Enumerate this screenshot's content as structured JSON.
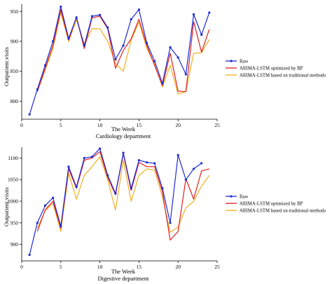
{
  "chart_data": [
    {
      "type": "line",
      "title": "",
      "xlabel": "The Week",
      "subtitle": "Cardiology department",
      "ylabel": "Outpatient.visits",
      "xlim": [
        0,
        25
      ],
      "ylim": [
        770,
        962
      ],
      "xticks": [
        0,
        5,
        10,
        15,
        20,
        25
      ],
      "yticks": [
        800,
        850,
        900,
        950
      ],
      "grid": false,
      "legend_position": "right",
      "series": [
        {
          "name": "Raw",
          "color": "#1f2bd6",
          "marker": "circle",
          "x": [
            1,
            2,
            3,
            4,
            5,
            6,
            7,
            8,
            9,
            10,
            11,
            12,
            13,
            14,
            15,
            16,
            17,
            18,
            19,
            20,
            21,
            22,
            23,
            24
          ],
          "values": [
            778,
            820,
            860,
            900,
            958,
            905,
            940,
            893,
            942,
            944,
            923,
            870,
            893,
            937,
            953,
            897,
            867,
            830,
            890,
            873,
            845,
            945,
            911,
            948
          ]
        },
        {
          "name": "ARIMA-LSTM optimized by BP",
          "color": "#e02020",
          "marker": "none",
          "x": [
            2,
            3,
            4,
            5,
            6,
            7,
            8,
            9,
            10,
            11,
            12,
            13,
            14,
            15,
            16,
            17,
            18,
            19,
            20,
            21,
            22,
            23,
            24
          ],
          "values": [
            816,
            855,
            893,
            953,
            902,
            941,
            888,
            939,
            942,
            921,
            855,
            885,
            904,
            937,
            893,
            860,
            826,
            880,
            817,
            816,
            933,
            882,
            920
          ]
        },
        {
          "name": "ARIMA-LSTM based on traditional methods",
          "color": "#f0b020",
          "marker": "none",
          "x": [
            2,
            3,
            4,
            5,
            6,
            7,
            8,
            9,
            10,
            11,
            12,
            13,
            14,
            15,
            16,
            17,
            18,
            19,
            20,
            21,
            22,
            23,
            24
          ],
          "values": [
            816,
            852,
            888,
            948,
            900,
            936,
            895,
            921,
            921,
            900,
            863,
            850,
            902,
            932,
            888,
            862,
            824,
            860,
            812,
            816,
            880,
            881,
            903
          ]
        }
      ]
    },
    {
      "type": "line",
      "title": "",
      "xlabel": "The Week",
      "subtitle": "Digestive department",
      "ylabel": "Outpatient.visits",
      "xlim": [
        0,
        25
      ],
      "ylim": [
        862,
        1125
      ],
      "xticks": [
        0,
        5,
        10,
        15,
        20,
        25
      ],
      "yticks": [
        900,
        950,
        1000,
        1050,
        1100
      ],
      "grid": false,
      "legend_position": "right",
      "series": [
        {
          "name": "Raw",
          "color": "#1f2bd6",
          "marker": "circle",
          "x": [
            1,
            2,
            3,
            4,
            5,
            6,
            7,
            8,
            9,
            10,
            11,
            12,
            13,
            14,
            15,
            16,
            17,
            18,
            19,
            20,
            21,
            22,
            23,
            24
          ],
          "values": [
            876,
            950,
            990,
            1008,
            942,
            1080,
            1033,
            1100,
            1103,
            1122,
            1060,
            1018,
            1112,
            1030,
            1095,
            1090,
            1088,
            1030,
            950,
            1107,
            1050,
            1075,
            1088,
            null
          ]
        },
        {
          "name": "ARIMA-LSTM optimized by BP",
          "color": "#e02020",
          "marker": "none",
          "x": [
            2,
            3,
            4,
            5,
            6,
            7,
            8,
            9,
            10,
            11,
            12,
            13,
            14,
            15,
            16,
            17,
            18,
            19,
            20,
            21,
            22,
            23,
            24
          ],
          "values": [
            930,
            980,
            1000,
            938,
            1075,
            1030,
            1095,
            1100,
            1115,
            1055,
            1015,
            1110,
            1025,
            1090,
            1080,
            1080,
            1022,
            910,
            930,
            1052,
            1005,
            1070,
            1075
          ]
        },
        {
          "name": "ARIMA-LSTM based on traditional methods",
          "color": "#f0b020",
          "marker": "none",
          "x": [
            2,
            3,
            4,
            5,
            6,
            7,
            8,
            9,
            10,
            11,
            12,
            13,
            14,
            15,
            16,
            17,
            18,
            19,
            20,
            21,
            22,
            23,
            24
          ],
          "values": [
            938,
            978,
            995,
            930,
            1065,
            1005,
            1060,
            1080,
            1103,
            1050,
            980,
            1095,
            1000,
            1060,
            1075,
            1072,
            1010,
            928,
            940,
            985,
            1000,
            1035,
            1060
          ]
        }
      ]
    }
  ]
}
